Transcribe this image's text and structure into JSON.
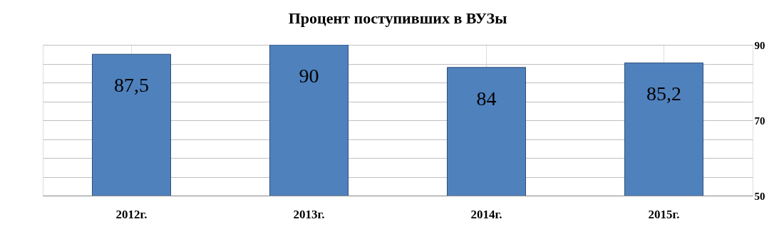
{
  "chart_data": {
    "type": "bar",
    "title": "Процент поступивших в ВУЗы",
    "categories": [
      "2012г.",
      "2013г.",
      "2014г.",
      "2015г."
    ],
    "values": [
      87.5,
      90,
      84,
      85.2
    ],
    "value_labels": [
      "87,5",
      "90",
      "84",
      "85,2"
    ],
    "color": "#4f81bd",
    "ylim": [
      50,
      90
    ],
    "yticks": [
      50,
      {
        "value": 55,
        "label": null
      },
      {
        "value": 60,
        "label": null
      },
      {
        "value": 65,
        "label": null
      },
      70,
      {
        "value": 75,
        "label": null
      },
      {
        "value": 80,
        "label": null
      },
      {
        "value": 85,
        "label": null
      },
      90
    ],
    "grid": true
  }
}
